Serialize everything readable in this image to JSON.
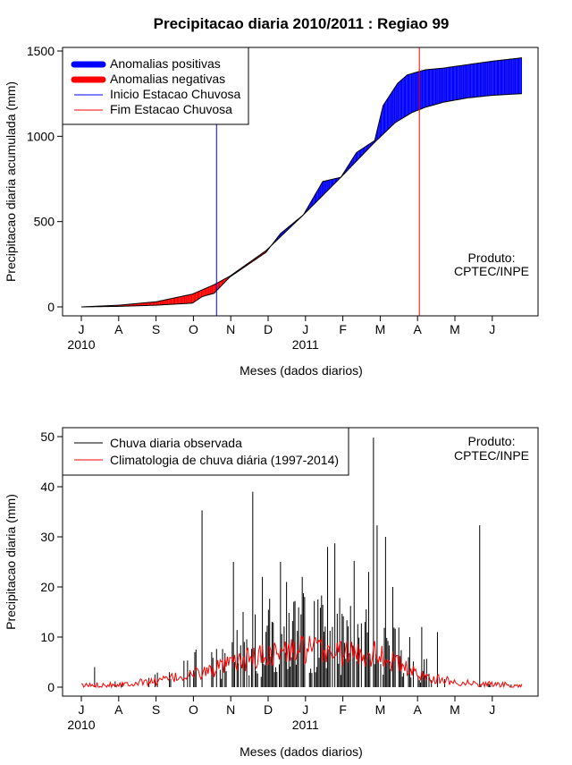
{
  "title": "Precipitacao diaria 2010/2011 : Regiao 99",
  "chart_data": [
    {
      "type": "area",
      "title": "Precipitacao diaria 2010/2011 : Regiao 99",
      "xlabel": "Meses (dados diarios)",
      "ylabel": "Precipitacao diaria acumulada (mm)",
      "ylim": [
        0,
        1500
      ],
      "yticks": [
        0,
        500,
        1000,
        1500
      ],
      "month_labels": [
        "J",
        "A",
        "S",
        "O",
        "N",
        "D",
        "J",
        "F",
        "M",
        "A",
        "M",
        "J"
      ],
      "year_labels": [
        "2010",
        "2011"
      ],
      "day_range": [
        0,
        365
      ],
      "product_text": [
        "Produto:",
        "CPTEC/INPE"
      ],
      "legend": {
        "position": "top-left",
        "entries": [
          {
            "label": "Anomalias positivas",
            "color": "#0000ff"
          },
          {
            "label": "Anomalias negativas",
            "color": "#ff0000"
          },
          {
            "label": "Inicio Estacao Chuvosa",
            "color": "#0000ff"
          },
          {
            "label": "Fim Estacao Chuvosa",
            "color": "#ff0000"
          }
        ]
      },
      "onset_day": 112,
      "end_day": 280,
      "series": [
        {
          "name": "Climatologia acumulada",
          "x": [
            0,
            31,
            62,
            92,
            110,
            123,
            153,
            184,
            215,
            243,
            260,
            274,
            285,
            300,
            320,
            340,
            365
          ],
          "values": [
            0,
            10,
            30,
            75,
            130,
            180,
            330,
            540,
            760,
            965,
            1080,
            1140,
            1170,
            1200,
            1225,
            1240,
            1250
          ]
        },
        {
          "name": "Observado acumulado",
          "x": [
            0,
            31,
            62,
            92,
            100,
            110,
            123,
            153,
            165,
            184,
            200,
            215,
            228,
            243,
            250,
            262,
            270,
            285,
            300,
            320,
            340,
            365
          ],
          "values": [
            0,
            3,
            10,
            22,
            60,
            80,
            175,
            320,
            430,
            540,
            735,
            760,
            905,
            975,
            1180,
            1310,
            1360,
            1390,
            1400,
            1420,
            1440,
            1460
          ]
        }
      ]
    },
    {
      "type": "bar",
      "xlabel": "Meses (dados diarios)",
      "ylabel": "Precipitacao diaria (mm)",
      "ylim": [
        0,
        50
      ],
      "yticks": [
        0,
        10,
        20,
        30,
        40,
        50
      ],
      "month_labels": [
        "J",
        "A",
        "S",
        "O",
        "N",
        "D",
        "J",
        "F",
        "M",
        "A",
        "M",
        "J"
      ],
      "year_labels": [
        "2010",
        "2011"
      ],
      "product_text": [
        "Produto:",
        "CPTEC/INPE"
      ],
      "legend": {
        "position": "top-left",
        "entries": [
          {
            "label": "Chuva diaria observada",
            "color": "#000000"
          },
          {
            "label": "Climatologia de chuva diária (1997-2014)",
            "color": "#ff0000"
          }
        ]
      },
      "observed_peaks": [
        {
          "day": 11,
          "value": 4
        },
        {
          "day": 95,
          "value": 7.5
        },
        {
          "day": 100,
          "value": 35.3
        },
        {
          "day": 108,
          "value": 7
        },
        {
          "day": 126,
          "value": 25
        },
        {
          "day": 134,
          "value": 15
        },
        {
          "day": 142,
          "value": 39
        },
        {
          "day": 150,
          "value": 22
        },
        {
          "day": 165,
          "value": 25
        },
        {
          "day": 170,
          "value": 21
        },
        {
          "day": 183,
          "value": 22
        },
        {
          "day": 196,
          "value": 17.5
        },
        {
          "day": 204,
          "value": 28
        },
        {
          "day": 210,
          "value": 28.7
        },
        {
          "day": 226,
          "value": 25.2
        },
        {
          "day": 238,
          "value": 23
        },
        {
          "day": 242,
          "value": 49.8
        },
        {
          "day": 245,
          "value": 32.3
        },
        {
          "day": 252,
          "value": 30
        },
        {
          "day": 258,
          "value": 20
        },
        {
          "day": 272,
          "value": 10
        },
        {
          "day": 282,
          "value": 12
        },
        {
          "day": 295,
          "value": 11
        },
        {
          "day": 330,
          "value": 32.3
        }
      ],
      "climatology": {
        "x": [
          0,
          31,
          62,
          92,
          110,
          123,
          153,
          184,
          215,
          230,
          243,
          260,
          274,
          290,
          310,
          330,
          350,
          365
        ],
        "values": [
          0.3,
          0.6,
          1.2,
          2.5,
          3.5,
          4.5,
          6.5,
          7.5,
          7.0,
          6.5,
          7.0,
          5.0,
          3.0,
          1.8,
          1.0,
          0.7,
          0.5,
          0.3
        ]
      }
    }
  ]
}
